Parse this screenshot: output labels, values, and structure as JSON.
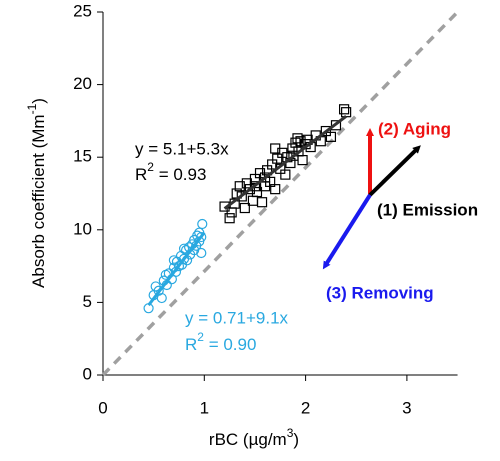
{
  "chart_data": {
    "type": "scatter",
    "x_label": {
      "text": "rBC (µg/m",
      "sup": "3",
      "end": ")"
    },
    "y_label": {
      "text": "Absorb coefficient (Mm",
      "sup": "-1",
      "end": ")"
    },
    "xlim": [
      0,
      3.5
    ],
    "ylim": [
      0,
      25
    ],
    "xticks": [
      0,
      1,
      2,
      3
    ],
    "yticks": [
      0,
      5,
      10,
      15,
      20,
      25
    ],
    "series": [
      {
        "name": "black",
        "color": "#000000",
        "marker": "square",
        "x": [
          1.2,
          1.25,
          1.27,
          1.3,
          1.32,
          1.35,
          1.37,
          1.4,
          1.42,
          1.45,
          1.48,
          1.5,
          1.52,
          1.55,
          1.57,
          1.6,
          1.62,
          1.65,
          1.67,
          1.7,
          1.72,
          1.75,
          1.77,
          1.8,
          1.82,
          1.85,
          1.87,
          1.88,
          1.9,
          1.92,
          1.93,
          1.95,
          1.97,
          2.0,
          2.02,
          2.05,
          2.1,
          2.15,
          2.2,
          2.25,
          2.3,
          2.38,
          2.4,
          1.7,
          1.6,
          1.5
        ],
        "y": [
          11.6,
          10.8,
          11.2,
          11.8,
          12.5,
          13.0,
          12.3,
          11.5,
          13.2,
          12.8,
          12.0,
          13.5,
          12.6,
          13.9,
          11.9,
          13.0,
          14.1,
          13.3,
          14.5,
          12.8,
          14.9,
          14.2,
          15.3,
          13.8,
          15.0,
          14.6,
          15.6,
          15.1,
          16.0,
          16.3,
          15.4,
          16.1,
          14.8,
          15.9,
          16.2,
          15.7,
          16.5,
          16.1,
          16.8,
          16.4,
          17.2,
          18.3,
          18.1,
          15.6,
          13.6,
          13.0
        ]
      },
      {
        "name": "blue",
        "color": "#29a8e0",
        "marker": "circle",
        "x": [
          0.45,
          0.5,
          0.52,
          0.55,
          0.58,
          0.6,
          0.62,
          0.63,
          0.65,
          0.68,
          0.7,
          0.72,
          0.73,
          0.75,
          0.77,
          0.78,
          0.8,
          0.82,
          0.83,
          0.85,
          0.86,
          0.88,
          0.9,
          0.9,
          0.92,
          0.93,
          0.95,
          0.95,
          0.97,
          0.98,
          0.97,
          0.8,
          0.7
        ],
        "y": [
          4.6,
          5.5,
          6.1,
          5.8,
          5.3,
          6.5,
          6.9,
          6.2,
          7.0,
          6.6,
          7.4,
          7.1,
          7.8,
          7.5,
          8.2,
          7.6,
          8.0,
          8.6,
          7.9,
          8.8,
          8.3,
          9.0,
          8.6,
          9.3,
          8.9,
          9.6,
          9.2,
          9.8,
          8.4,
          10.4,
          9.5,
          8.7,
          7.9
        ]
      }
    ],
    "fits": [
      {
        "color": "#333333",
        "x": [
          1.2,
          2.4
        ],
        "y": [
          11.46,
          17.82
        ]
      },
      {
        "color": "#29a8e0",
        "x": [
          0.45,
          1.0
        ],
        "y": [
          4.81,
          9.81
        ]
      }
    ],
    "reference_line": {
      "color": "#a0a0a0",
      "x": [
        0,
        3.5
      ],
      "y": [
        0,
        25
      ]
    },
    "annotations": [
      {
        "text": "y = 5.1+5.3x",
        "color": "#000000"
      },
      {
        "base": "R",
        "sup": "2",
        "rest": " = 0.93",
        "color": "#000000"
      },
      {
        "text": "y = 0.71+9.1x",
        "color": "#29a8e0"
      },
      {
        "base": "R",
        "sup": "2",
        "rest": " = 0.90",
        "color": "#29a8e0"
      },
      {
        "text": "(2) Aging",
        "color": "#ee1111"
      },
      {
        "text": "(1) Emission",
        "color": "#000000"
      },
      {
        "text": "(3) Removing",
        "color": "#1a1aee"
      }
    ]
  }
}
